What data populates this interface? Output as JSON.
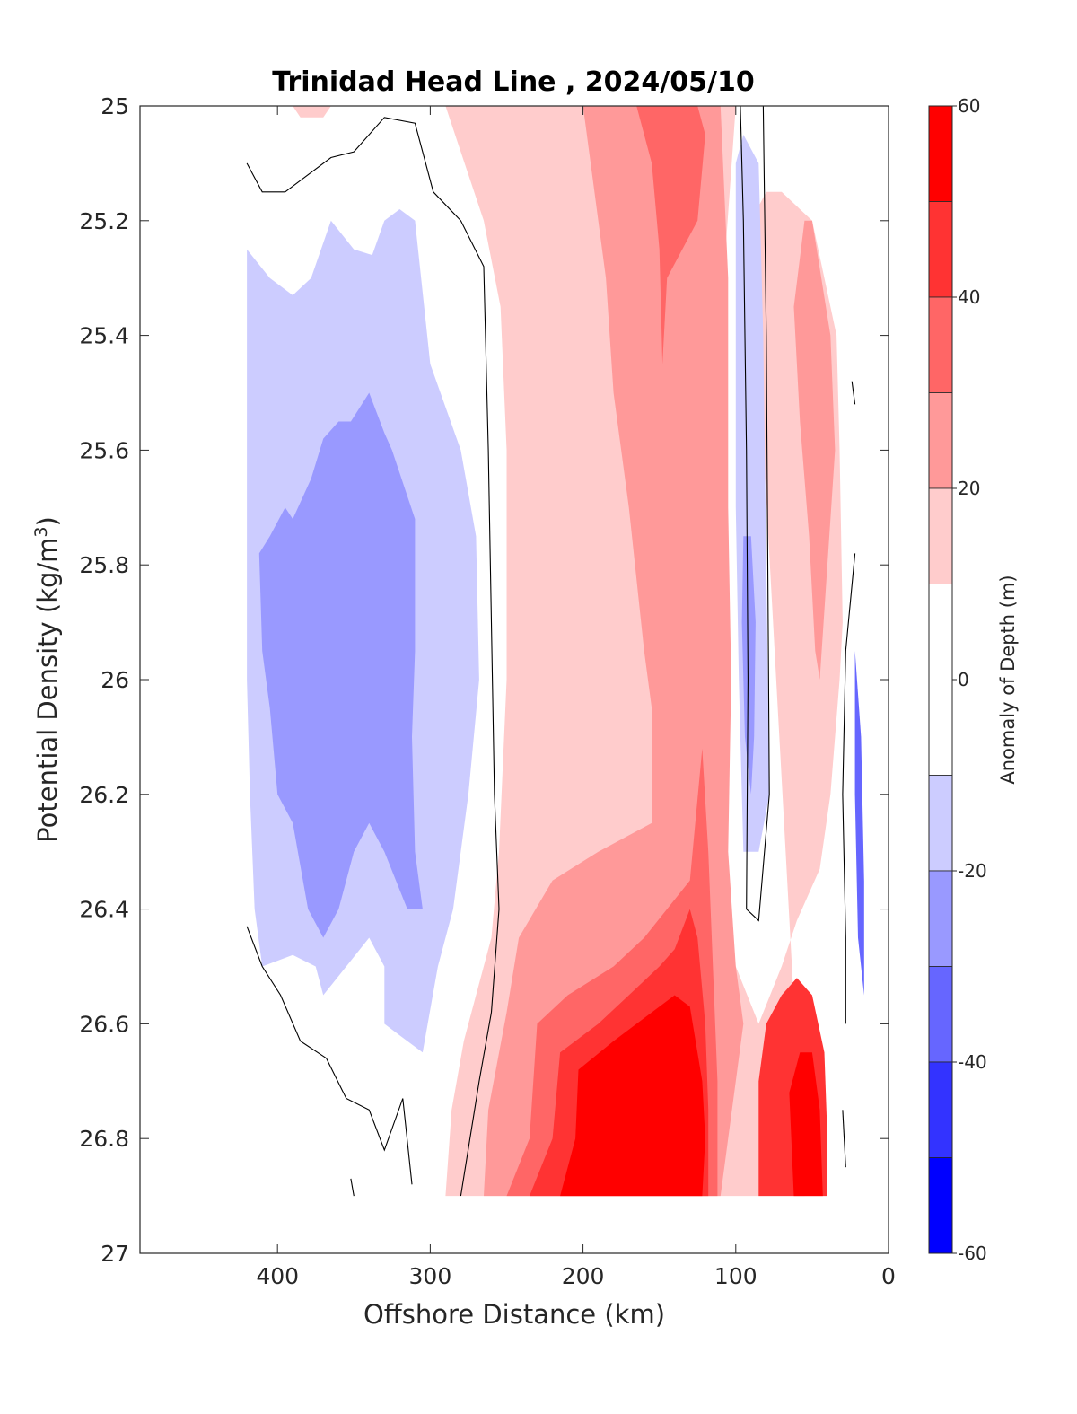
{
  "chart_data": {
    "type": "contourf",
    "title": "Trinidad Head Line , 2024/05/10",
    "xlabel": "Offshore Distance (km)",
    "ylabel_main": "Potential Density (kg/m",
    "ylabel_sup": "3",
    "ylabel_close": ")",
    "colorbar_label": "Anomaly of Depth (m)",
    "x_reversed": true,
    "y_reversed": true,
    "xlim": [
      0,
      490
    ],
    "ylim": [
      25,
      27
    ],
    "xticks": [
      400,
      300,
      200,
      100,
      0
    ],
    "yticks": [
      25,
      25.2,
      25.4,
      25.6,
      25.8,
      26,
      26.2,
      26.4,
      26.6,
      26.8,
      27
    ],
    "ytick_labels": [
      "25",
      "25.2",
      "25.4",
      "25.6",
      "25.8",
      "26",
      "26.2",
      "26.4",
      "26.6",
      "26.8",
      "27"
    ],
    "colorbar_ticks": [
      60,
      40,
      20,
      0,
      -20,
      -40,
      -60
    ],
    "colorbar_levels": [
      {
        "lo": 50,
        "hi": 60,
        "color": "#FF0000"
      },
      {
        "lo": 40,
        "hi": 50,
        "color": "#FF3333"
      },
      {
        "lo": 30,
        "hi": 40,
        "color": "#FF6666"
      },
      {
        "lo": 20,
        "hi": 30,
        "color": "#FF9999"
      },
      {
        "lo": 10,
        "hi": 20,
        "color": "#FFCCCC"
      },
      {
        "lo": -10,
        "hi": 10,
        "color": "#FFFFFF"
      },
      {
        "lo": -20,
        "hi": -10,
        "color": "#CCCCFF"
      },
      {
        "lo": -30,
        "hi": -20,
        "color": "#9999FF"
      },
      {
        "lo": -40,
        "hi": -30,
        "color": "#6666FF"
      },
      {
        "lo": -50,
        "hi": -40,
        "color": "#3333FF"
      },
      {
        "lo": -60,
        "hi": -50,
        "color": "#0000FF"
      }
    ],
    "regions": [
      {
        "name": "offshore-pink-top",
        "level": 15,
        "points": [
          [
            390,
            25
          ],
          [
            365,
            25
          ],
          [
            370,
            25.02
          ],
          [
            385,
            25.02
          ]
        ]
      },
      {
        "name": "blue-light-offshore",
        "level": -15,
        "points": [
          [
            420,
            25.25
          ],
          [
            405,
            25.3
          ],
          [
            390,
            25.33
          ],
          [
            378,
            25.3
          ],
          [
            365,
            25.2
          ],
          [
            350,
            25.25
          ],
          [
            338,
            25.26
          ],
          [
            330,
            25.2
          ],
          [
            320,
            25.18
          ],
          [
            310,
            25.2
          ],
          [
            300,
            25.45
          ],
          [
            280,
            25.6
          ],
          [
            270,
            25.75
          ],
          [
            268,
            26.0
          ],
          [
            275,
            26.2
          ],
          [
            285,
            26.4
          ],
          [
            295,
            26.5
          ],
          [
            305,
            26.65
          ],
          [
            320,
            26.62
          ],
          [
            330,
            26.6
          ],
          [
            330,
            26.5
          ],
          [
            340,
            26.45
          ],
          [
            355,
            26.5
          ],
          [
            370,
            26.55
          ],
          [
            375,
            26.5
          ],
          [
            390,
            26.48
          ],
          [
            410,
            26.5
          ],
          [
            415,
            26.4
          ],
          [
            418,
            26.2
          ],
          [
            420,
            26.0
          ]
        ]
      },
      {
        "name": "blue-mid-offshore",
        "level": -25,
        "points": [
          [
            412,
            25.78
          ],
          [
            405,
            25.75
          ],
          [
            395,
            25.7
          ],
          [
            390,
            25.72
          ],
          [
            378,
            25.65
          ],
          [
            370,
            25.58
          ],
          [
            360,
            25.55
          ],
          [
            352,
            25.55
          ],
          [
            340,
            25.5
          ],
          [
            330,
            25.57
          ],
          [
            325,
            25.6
          ],
          [
            310,
            25.72
          ],
          [
            310,
            25.95
          ],
          [
            312,
            26.1
          ],
          [
            310,
            26.3
          ],
          [
            305,
            26.4
          ],
          [
            315,
            26.4
          ],
          [
            330,
            26.3
          ],
          [
            340,
            26.25
          ],
          [
            350,
            26.3
          ],
          [
            360,
            26.4
          ],
          [
            370,
            26.45
          ],
          [
            380,
            26.4
          ],
          [
            390,
            26.25
          ],
          [
            400,
            26.2
          ],
          [
            405,
            26.05
          ],
          [
            410,
            25.95
          ]
        ]
      },
      {
        "name": "pink-light-inshore",
        "level": 15,
        "points": [
          [
            290,
            25
          ],
          [
            230,
            25
          ],
          [
            180,
            25
          ],
          [
            100,
            25
          ],
          [
            108,
            25.3
          ],
          [
            112,
            25.7
          ],
          [
            115,
            26.0
          ],
          [
            122,
            26.2
          ],
          [
            100,
            26.5
          ],
          [
            85,
            26.6
          ],
          [
            70,
            26.5
          ],
          [
            60,
            26.42
          ],
          [
            45,
            26.33
          ],
          [
            38,
            26.2
          ],
          [
            32,
            26.0
          ],
          [
            30,
            25.9
          ],
          [
            32,
            25.6
          ],
          [
            34,
            25.4
          ],
          [
            50,
            25.2
          ],
          [
            70,
            25.15
          ],
          [
            80,
            25.15
          ],
          [
            90,
            25.2
          ],
          [
            55,
            26.9
          ],
          [
            100,
            26.9
          ],
          [
            140,
            26.9
          ],
          [
            200,
            26.9
          ],
          [
            260,
            26.9
          ],
          [
            290,
            26.9
          ],
          [
            286,
            26.75
          ],
          [
            278,
            26.63
          ],
          [
            270,
            26.55
          ],
          [
            260,
            26.45
          ],
          [
            255,
            26.3
          ],
          [
            250,
            26.0
          ],
          [
            250,
            25.8
          ],
          [
            250,
            25.6
          ],
          [
            254,
            25.35
          ],
          [
            265,
            25.2
          ],
          [
            280,
            25.08
          ]
        ]
      },
      {
        "name": "pink-mid-central",
        "level": 25,
        "points": [
          [
            200,
            25
          ],
          [
            160,
            25
          ],
          [
            110,
            25
          ],
          [
            105,
            25.3
          ],
          [
            105,
            25.7
          ],
          [
            103,
            26.0
          ],
          [
            105,
            26.3
          ],
          [
            100,
            26.5
          ],
          [
            95,
            26.6
          ],
          [
            110,
            26.9
          ],
          [
            170,
            26.9
          ],
          [
            230,
            26.9
          ],
          [
            265,
            26.9
          ],
          [
            262,
            26.75
          ],
          [
            250,
            26.58
          ],
          [
            242,
            26.45
          ],
          [
            220,
            26.35
          ],
          [
            190,
            26.3
          ],
          [
            155,
            26.25
          ],
          [
            155,
            26.05
          ],
          [
            160,
            25.95
          ],
          [
            170,
            25.7
          ],
          [
            180,
            25.5
          ],
          [
            185,
            25.3
          ],
          [
            190,
            25.2
          ]
        ]
      },
      {
        "name": "pink-mid-nearshore",
        "level": 25,
        "points": [
          [
            55,
            25.2
          ],
          [
            50,
            25.2
          ],
          [
            38,
            25.4
          ],
          [
            35,
            25.6
          ],
          [
            40,
            25.8
          ],
          [
            45,
            26.0
          ],
          [
            48,
            25.95
          ],
          [
            52,
            25.75
          ],
          [
            58,
            25.55
          ],
          [
            62,
            25.35
          ]
        ]
      },
      {
        "name": "red-upper-core",
        "level": 35,
        "points": [
          [
            185,
            25
          ],
          [
            165,
            25
          ],
          [
            155,
            25.1
          ],
          [
            150,
            25.25
          ],
          [
            148,
            25.45
          ],
          [
            145,
            25.3
          ],
          [
            135,
            25.25
          ],
          [
            125,
            25.2
          ],
          [
            120,
            25.05
          ],
          [
            125,
            25
          ]
        ]
      },
      {
        "name": "red-lower-30",
        "level": 35,
        "points": [
          [
            250,
            26.9
          ],
          [
            235,
            26.8
          ],
          [
            230,
            26.6
          ],
          [
            210,
            26.55
          ],
          [
            180,
            26.5
          ],
          [
            160,
            26.45
          ],
          [
            130,
            26.35
          ],
          [
            122,
            26.12
          ],
          [
            118,
            26.3
          ],
          [
            115,
            26.5
          ],
          [
            112,
            26.7
          ],
          [
            112,
            26.9
          ]
        ]
      },
      {
        "name": "red-lower-40",
        "level": 45,
        "points": [
          [
            235,
            26.9
          ],
          [
            220,
            26.8
          ],
          [
            215,
            26.65
          ],
          [
            190,
            26.6
          ],
          [
            170,
            26.55
          ],
          [
            150,
            26.5
          ],
          [
            140,
            26.47
          ],
          [
            130,
            26.4
          ],
          [
            125,
            26.45
          ],
          [
            120,
            26.6
          ],
          [
            118,
            26.75
          ],
          [
            118,
            26.9
          ]
        ]
      },
      {
        "name": "red-lower-50",
        "level": 55,
        "points": [
          [
            215,
            26.9
          ],
          [
            205,
            26.8
          ],
          [
            203,
            26.68
          ],
          [
            180,
            26.63
          ],
          [
            155,
            26.58
          ],
          [
            140,
            26.55
          ],
          [
            130,
            26.57
          ],
          [
            122,
            26.7
          ],
          [
            120,
            26.8
          ],
          [
            122,
            26.9
          ]
        ]
      },
      {
        "name": "red-nearshore-lower",
        "level": 45,
        "points": [
          [
            85,
            26.7
          ],
          [
            80,
            26.6
          ],
          [
            70,
            26.55
          ],
          [
            60,
            26.52
          ],
          [
            50,
            26.55
          ],
          [
            42,
            26.65
          ],
          [
            40,
            26.8
          ],
          [
            40,
            26.9
          ],
          [
            70,
            26.9
          ],
          [
            85,
            26.9
          ]
        ]
      },
      {
        "name": "red-nearshore-core",
        "level": 55,
        "points": [
          [
            65,
            26.72
          ],
          [
            58,
            26.65
          ],
          [
            50,
            26.65
          ],
          [
            45,
            26.75
          ],
          [
            43,
            26.9
          ],
          [
            62,
            26.9
          ]
        ]
      },
      {
        "name": "blue-nearshore-strip",
        "level": -15,
        "points": [
          [
            100,
            25.1
          ],
          [
            95,
            25.05
          ],
          [
            85,
            25.1
          ],
          [
            82,
            25.4
          ],
          [
            80,
            25.8
          ],
          [
            78,
            26.2
          ],
          [
            85,
            26.3
          ],
          [
            95,
            26.3
          ],
          [
            98,
            26.0
          ],
          [
            100,
            25.7
          ],
          [
            100,
            25.3
          ]
        ]
      },
      {
        "name": "blue-nearshore-mid",
        "level": -25,
        "points": [
          [
            95,
            25.75
          ],
          [
            90,
            25.75
          ],
          [
            87,
            25.9
          ],
          [
            88,
            26.1
          ],
          [
            90,
            26.2
          ],
          [
            94,
            26.1
          ],
          [
            96,
            25.9
          ]
        ]
      },
      {
        "name": "blue-coast-strip",
        "level": -35,
        "points": [
          [
            22,
            25.95
          ],
          [
            18,
            26.1
          ],
          [
            16,
            26.35
          ],
          [
            16,
            26.55
          ],
          [
            20,
            26.45
          ],
          [
            22,
            26.2
          ]
        ]
      }
    ],
    "zero_contours": [
      [
        [
          420,
          25.1
        ],
        [
          410,
          25.15
        ],
        [
          395,
          25.15
        ],
        [
          380,
          25.12
        ],
        [
          365,
          25.09
        ],
        [
          350,
          25.08
        ],
        [
          330,
          25.02
        ],
        [
          310,
          25.03
        ],
        [
          298,
          25.15
        ],
        [
          280,
          25.2
        ],
        [
          265,
          25.28
        ],
        [
          262,
          25.6
        ],
        [
          260,
          25.9
        ],
        [
          258,
          26.2
        ],
        [
          255,
          26.4
        ],
        [
          260,
          26.58
        ],
        [
          268,
          26.7
        ],
        [
          280,
          26.9
        ]
      ],
      [
        [
          420,
          26.43
        ],
        [
          410,
          26.5
        ],
        [
          398,
          26.55
        ],
        [
          385,
          26.63
        ],
        [
          368,
          26.66
        ],
        [
          355,
          26.73
        ],
        [
          340,
          26.75
        ],
        [
          330,
          26.82
        ],
        [
          318,
          26.73
        ],
        [
          312,
          26.88
        ]
      ],
      [
        [
          97,
          25
        ],
        [
          95,
          25.2
        ],
        [
          93,
          25.6
        ],
        [
          92,
          26.0
        ],
        [
          93,
          26.4
        ],
        [
          85,
          26.42
        ],
        [
          78,
          26.2
        ],
        [
          79,
          25.8
        ],
        [
          80,
          25.4
        ],
        [
          82,
          25.0
        ]
      ],
      [
        [
          24,
          25.48
        ],
        [
          22,
          25.52
        ]
      ],
      [
        [
          22,
          25.78
        ],
        [
          28,
          25.95
        ],
        [
          30,
          26.2
        ],
        [
          28,
          26.45
        ],
        [
          28,
          26.6
        ]
      ],
      [
        [
          30,
          26.75
        ],
        [
          28,
          26.85
        ]
      ],
      [
        [
          350,
          26.9
        ],
        [
          352,
          26.87
        ]
      ]
    ]
  }
}
